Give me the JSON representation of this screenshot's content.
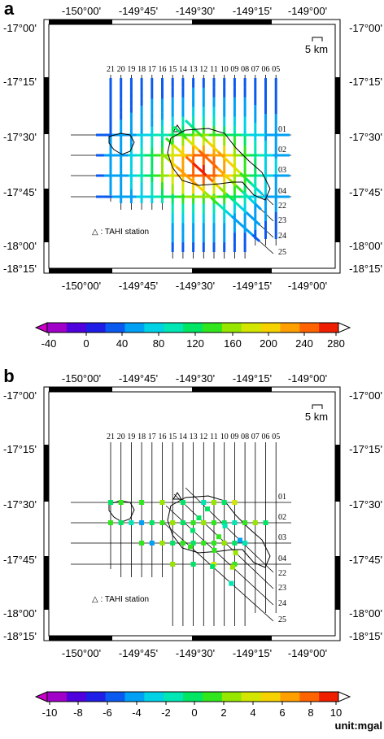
{
  "panels": [
    {
      "label": "a",
      "top_ticks": [
        "-150°00'",
        "-149°45'",
        "-149°30'",
        "-149°15'",
        "-149°00'"
      ],
      "bottom_ticks": [
        "-150°00'",
        "-149°45'",
        "-149°30'",
        "-149°15'",
        "-149°00'"
      ],
      "left_ticks": [
        "-17°00'",
        "-17°15'",
        "-17°30'",
        "-17°45'",
        "-18°00'",
        "-18°15'"
      ],
      "right_ticks": [
        "-17°00'",
        "-17°15'",
        "-17°30'",
        "-17°45'",
        "-18°00'",
        "-18°15'"
      ],
      "scale_bar": "5 km",
      "station_label": "△ : TAHI station",
      "vertical_line_ids": [
        "21",
        "20",
        "19",
        "18",
        "17",
        "16",
        "15",
        "14",
        "13",
        "12",
        "11",
        "10",
        "09",
        "08",
        "07",
        "06",
        "05"
      ],
      "horizontal_line_ids": [
        "01",
        "02",
        "03",
        "04"
      ],
      "diagonal_line_ids": [
        "22",
        "23",
        "24",
        "25"
      ],
      "colorbar_ticks": [
        "-40",
        "0",
        "40",
        "80",
        "120",
        "160",
        "200",
        "240",
        "280"
      ],
      "colorbar_range": [
        -60,
        280
      ],
      "colorbar_unit": ""
    },
    {
      "label": "b",
      "top_ticks": [
        "-150°00'",
        "-149°45'",
        "-149°30'",
        "-149°15'",
        "-149°00'"
      ],
      "bottom_ticks": [
        "-150°00'",
        "-149°45'",
        "-149°30'",
        "-149°15'",
        "-149°00'"
      ],
      "left_ticks": [
        "-17°00'",
        "-17°15'",
        "-17°30'",
        "-17°45'",
        "-18°00'",
        "-18°15'"
      ],
      "right_ticks": [
        "-17°00'",
        "-17°15'",
        "-17°30'",
        "-17°45'",
        "-18°00'",
        "-18°15'"
      ],
      "scale_bar": "5 km",
      "station_label": "△ : TAHI station",
      "vertical_line_ids": [
        "21",
        "20",
        "19",
        "18",
        "17",
        "16",
        "15",
        "14",
        "13",
        "12",
        "11",
        "10",
        "09",
        "08",
        "07",
        "06",
        "05"
      ],
      "horizontal_line_ids": [
        "01",
        "02",
        "03",
        "04"
      ],
      "diagonal_line_ids": [
        "22",
        "23",
        "24",
        "25"
      ],
      "colorbar_ticks": [
        "-10",
        "-8",
        "-6",
        "-4",
        "-2",
        "0",
        "2",
        "4",
        "6",
        "8",
        "10"
      ],
      "colorbar_range": [
        -10,
        10
      ],
      "colorbar_unit": "unit:mgal"
    }
  ],
  "colors": {
    "colormap": [
      "#a000c8",
      "#5000dc",
      "#1e1ee6",
      "#0a5af0",
      "#00a0f5",
      "#00d2e6",
      "#00e6b4",
      "#00e664",
      "#32e61e",
      "#96e600",
      "#d2e600",
      "#f5d200",
      "#ffa000",
      "#ff6400",
      "#f01e00"
    ],
    "frame": "#000000"
  }
}
